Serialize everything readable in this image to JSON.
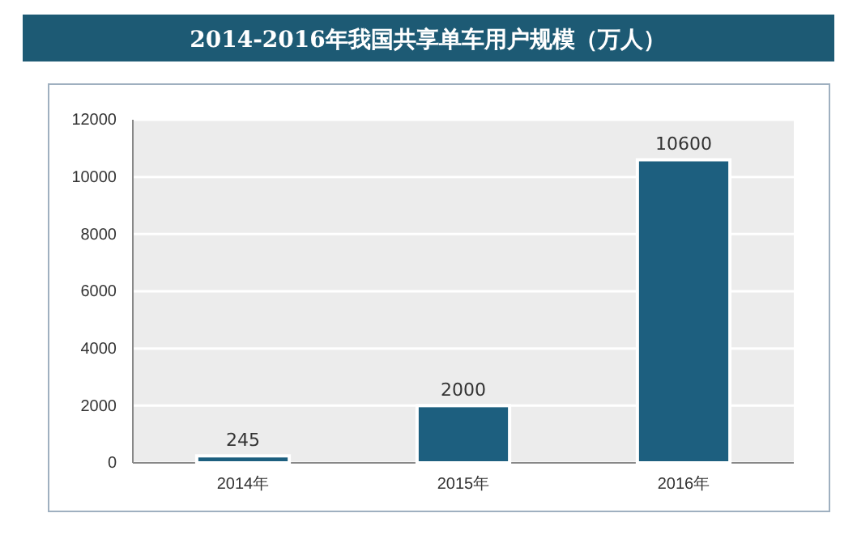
{
  "chart_data": {
    "type": "bar",
    "title": "2014-2016年我国共享单车用户规模（万人）",
    "categories": [
      "2014年",
      "2015年",
      "2016年"
    ],
    "values": [
      245,
      2000,
      10600
    ],
    "color": "#1d5f7f",
    "ylim": [
      0,
      12000
    ],
    "yticks": [
      0,
      2000,
      4000,
      6000,
      8000,
      10000,
      12000
    ],
    "grid": "y",
    "data_labels": true
  }
}
